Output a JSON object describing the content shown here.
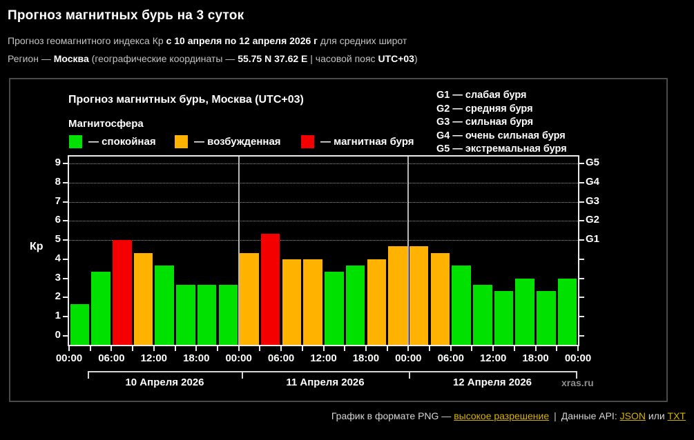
{
  "page": {
    "title": "Прогноз магнитных бурь на 3 суток",
    "subtitle_prefix": "Прогноз геомагнитного индекса Кр ",
    "subtitle_bold": "с 10 апреля по 12 апреля 2026 г",
    "subtitle_suffix": " для средних широт",
    "region_prefix": "Регион — ",
    "region_name": "Москва",
    "region_mid": " (географические координаты — ",
    "region_coords": "55.75 N 37.62 E",
    "region_tz_label": " | часовой пояс ",
    "region_tz": "UTC+03",
    "region_close": ")"
  },
  "chart": {
    "title": "Прогноз магнитных бурь, Москва (UTC+03)",
    "legend_title": "Магнитосфера",
    "legend": [
      {
        "key": "quiet",
        "label": "— спокойная",
        "color": "#00e100"
      },
      {
        "key": "disturbed",
        "label": "— возбужденная",
        "color": "#ffb300"
      },
      {
        "key": "storm",
        "label": "— магнитная буря",
        "color": "#f40000"
      }
    ],
    "g_legend": [
      "G1 — слабая буря",
      "G2 — средняя буря",
      "G3 — сильная буря",
      "G4 — очень сильная буря",
      "G5 — экстремальная буря"
    ],
    "watermark": "xras.ru"
  },
  "chart_data": {
    "type": "bar",
    "title": "Прогноз магнитных бурь, Москва (UTC+03)",
    "ylabel": "Кр",
    "ylim": [
      0,
      9.4
    ],
    "yticks": [
      0,
      1,
      2,
      3,
      4,
      5,
      6,
      7,
      8,
      9
    ],
    "gridlines_at": [
      5,
      6,
      7,
      8,
      9
    ],
    "grid": "dotted horizontal lines at G-storm levels only",
    "right_axis": [
      {
        "value": 5,
        "label": "G1"
      },
      {
        "value": 6,
        "label": "G2"
      },
      {
        "value": 7,
        "label": "G3"
      },
      {
        "value": 8,
        "label": "G4"
      },
      {
        "value": 9,
        "label": "G5"
      }
    ],
    "time_labels": [
      "00:00",
      "06:00",
      "12:00",
      "18:00"
    ],
    "bar_interval_hours": 3,
    "days": [
      {
        "date": "10 Апреля 2026",
        "values": [
          1.67,
          3.33,
          5.0,
          4.33,
          3.67,
          2.67,
          2.67,
          2.67
        ]
      },
      {
        "date": "11 Апреля 2026",
        "values": [
          4.33,
          5.33,
          4.0,
          4.0,
          3.33,
          3.67,
          4.0,
          4.67
        ]
      },
      {
        "date": "12 Апреля 2026",
        "values": [
          4.67,
          4.33,
          3.67,
          2.67,
          2.33,
          3.0,
          2.33,
          3.0
        ]
      }
    ],
    "colors": {
      "quiet": "#00e100",
      "disturbed": "#ffb300",
      "storm": "#f40000"
    },
    "color_rule": {
      "disturbed_min_kp": 4,
      "storm_min_kp": 5
    },
    "legend_position": "top-left"
  },
  "footer": {
    "png_prefix": "График в формате PNG — ",
    "high_res_link": "высокое разрешение",
    "pipe": "|",
    "api_prefix": "Данные API: ",
    "json_link": "JSON",
    "or_text": " или ",
    "txt_link": "TXT"
  }
}
